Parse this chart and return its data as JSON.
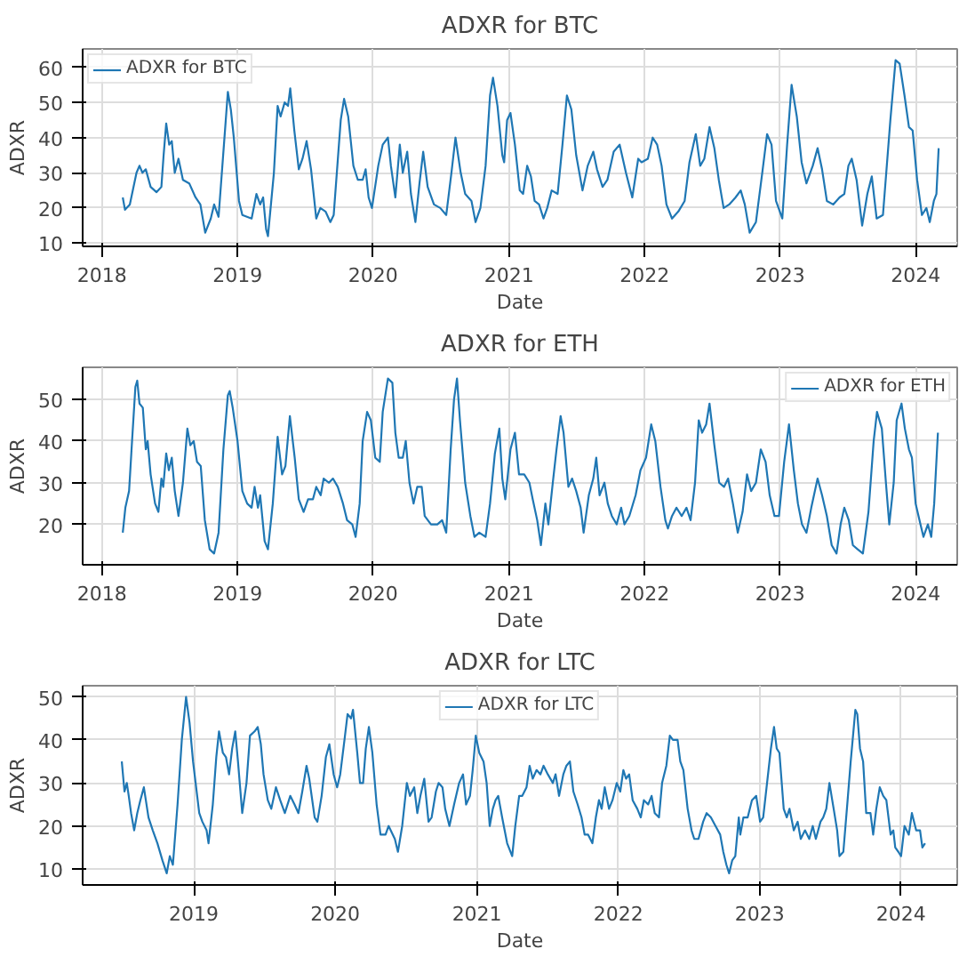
{
  "chart_data": [
    {
      "type": "line",
      "title": "ADXR for BTC",
      "xlabel": "Date",
      "ylabel": "ADXR",
      "legend": "top left",
      "grid": true,
      "xlim": [
        "2017-11-10",
        "2024-04-22"
      ],
      "xticks": [
        "2018",
        "2019",
        "2020",
        "2021",
        "2022",
        "2023",
        "2024"
      ],
      "ylim": [
        9.1,
        65.2
      ],
      "yticks": [
        10,
        20,
        30,
        40,
        50,
        60
      ],
      "x": [
        "2018-02-26",
        "2018-03-04",
        "2018-03-17",
        "2018-04-04",
        "2018-04-12",
        "2018-04-20",
        "2018-04-29",
        "2018-05-12",
        "2018-05-28",
        "2018-06-10",
        "2018-06-16",
        "2018-06-23",
        "2018-07-01",
        "2018-07-08",
        "2018-07-16",
        "2018-07-26",
        "2018-08-07",
        "2018-08-24",
        "2018-09-10",
        "2018-09-23",
        "2018-10-06",
        "2018-10-21",
        "2018-10-30",
        "2018-11-11",
        "2018-12-06",
        "2018-12-14",
        "2018-12-22",
        "2019-01-05",
        "2019-01-14",
        "2019-02-08",
        "2019-02-21",
        "2019-03-03",
        "2019-03-11",
        "2019-03-19",
        "2019-03-24",
        "2019-04-09",
        "2019-04-19",
        "2019-04-27",
        "2019-05-08",
        "2019-05-17",
        "2019-05-23",
        "2019-06-03",
        "2019-06-15",
        "2019-06-25",
        "2019-07-06",
        "2019-07-18",
        "2019-08-01",
        "2019-08-12",
        "2019-08-26",
        "2019-09-08",
        "2019-09-17",
        "2019-10-06",
        "2019-10-15",
        "2019-10-26",
        "2019-11-09",
        "2019-11-21",
        "2019-12-04",
        "2019-12-12",
        "2019-12-20",
        "2019-12-29",
        "2020-01-15",
        "2020-01-27",
        "2020-02-10",
        "2020-02-18",
        "2020-03-01",
        "2020-03-13",
        "2020-03-21",
        "2020-04-02",
        "2020-04-12",
        "2020-04-24",
        "2020-05-05",
        "2020-05-15",
        "2020-05-27",
        "2020-06-13",
        "2020-06-30",
        "2020-07-16",
        "2020-07-30",
        "2020-08-10",
        "2020-08-24",
        "2020-09-05",
        "2020-09-22",
        "2020-10-03",
        "2020-10-16",
        "2020-10-30",
        "2020-11-11",
        "2020-11-19",
        "2020-12-01",
        "2020-12-14",
        "2020-12-19",
        "2020-12-27",
        "2021-01-05",
        "2021-01-17",
        "2021-01-30",
        "2021-02-08",
        "2021-02-19",
        "2021-03-01",
        "2021-03-11",
        "2021-03-23",
        "2021-04-04",
        "2021-04-14",
        "2021-04-26",
        "2021-05-12",
        "2021-05-25",
        "2021-06-06",
        "2021-06-18",
        "2021-07-01",
        "2021-07-18",
        "2021-08-01",
        "2021-08-16",
        "2021-08-26",
        "2021-09-10",
        "2021-09-23",
        "2021-10-10",
        "2021-10-26",
        "2021-11-12",
        "2021-11-29",
        "2021-12-15",
        "2021-12-24",
        "2022-01-10",
        "2022-01-23",
        "2022-02-04",
        "2022-02-16",
        "2022-03-01",
        "2022-03-16",
        "2022-04-02",
        "2022-04-19",
        "2022-05-02",
        "2022-05-19",
        "2022-05-31",
        "2022-06-11",
        "2022-06-25",
        "2022-07-08",
        "2022-07-20",
        "2022-08-02",
        "2022-08-17",
        "2022-09-03",
        "2022-09-17",
        "2022-09-28",
        "2022-10-11",
        "2022-10-28",
        "2022-11-14",
        "2022-11-27",
        "2022-12-09",
        "2022-12-21",
        "2023-01-07",
        "2023-01-20",
        "2023-02-01",
        "2023-02-15",
        "2023-02-28",
        "2023-03-13",
        "2023-03-30",
        "2023-04-12",
        "2023-04-24",
        "2023-05-07",
        "2023-05-24",
        "2023-06-10",
        "2023-06-23",
        "2023-07-04",
        "2023-07-13",
        "2023-07-26",
        "2023-08-10",
        "2023-08-24",
        "2023-09-05",
        "2023-09-18",
        "2023-10-05",
        "2023-10-25",
        "2023-11-08",
        "2023-11-19",
        "2023-12-02",
        "2023-12-14",
        "2023-12-24",
        "2024-01-05",
        "2024-01-18",
        "2024-01-30",
        "2024-02-08",
        "2024-02-19",
        "2024-02-26",
        "2024-03-03"
      ],
      "series": [
        {
          "name": "ADXR for BTC",
          "color": "#1f77b4",
          "values": [
            23,
            19.5,
            21,
            30,
            32,
            30,
            31,
            26,
            24.5,
            26,
            35,
            44,
            38,
            39,
            30,
            34,
            28,
            27,
            23,
            21,
            13,
            17,
            21,
            17.5,
            53,
            48,
            40,
            22,
            18,
            17,
            24,
            21,
            23,
            14,
            12,
            30,
            49,
            46,
            50,
            49,
            54,
            42,
            31,
            34,
            39,
            31,
            17,
            20,
            19,
            16,
            18,
            45,
            51,
            46,
            32,
            28,
            28,
            31,
            23,
            20,
            32,
            38,
            40,
            32,
            23,
            38,
            30,
            36,
            24,
            16,
            27,
            36,
            26,
            21,
            20,
            18,
            30,
            40,
            30,
            24,
            22,
            16,
            20,
            32,
            52,
            57,
            49,
            35,
            33,
            45,
            47,
            38,
            25,
            24,
            32,
            29,
            22,
            21,
            17,
            20,
            25,
            24,
            38,
            52,
            48,
            35,
            25,
            32,
            36,
            31,
            26,
            28,
            36,
            38,
            30,
            23,
            34,
            33,
            34,
            40,
            38,
            32,
            21,
            17,
            19,
            22,
            33,
            41,
            32,
            34,
            43,
            37,
            28,
            20,
            21,
            23,
            25,
            21,
            13,
            16,
            30,
            41,
            38,
            22,
            17,
            38,
            55,
            46,
            33,
            27,
            32,
            37,
            31,
            22,
            21,
            23,
            24,
            32,
            34,
            28,
            15,
            24,
            29,
            17,
            18,
            45,
            62,
            61,
            52,
            43,
            42,
            28,
            18,
            20,
            16,
            22,
            24,
            37
          ]
        }
      ]
    },
    {
      "type": "line",
      "title": "ADXR for ETH",
      "xlabel": "Date",
      "ylabel": "ADXR",
      "legend": "top right",
      "grid": true,
      "xlim": [
        "2017-11-10",
        "2024-04-22"
      ],
      "xticks": [
        "2018",
        "2019",
        "2020",
        "2021",
        "2022",
        "2023",
        "2024"
      ],
      "ylim": [
        10.3,
        57.7
      ],
      "yticks": [
        20,
        30,
        40,
        50
      ],
      "x": [
        "2018-02-26",
        "2018-03-05",
        "2018-03-15",
        "2018-03-23",
        "2018-04-01",
        "2018-04-06",
        "2018-04-12",
        "2018-04-21",
        "2018-04-29",
        "2018-05-04",
        "2018-05-12",
        "2018-05-24",
        "2018-06-02",
        "2018-06-10",
        "2018-06-15",
        "2018-06-23",
        "2018-06-30",
        "2018-07-08",
        "2018-07-16",
        "2018-07-26",
        "2018-08-07",
        "2018-08-19",
        "2018-08-27",
        "2018-09-05",
        "2018-09-14",
        "2018-09-24",
        "2018-10-05",
        "2018-10-18",
        "2018-10-30",
        "2018-11-11",
        "2018-11-24",
        "2018-12-06",
        "2018-12-11",
        "2018-12-19",
        "2019-01-01",
        "2019-01-14",
        "2019-01-27",
        "2019-02-08",
        "2019-02-16",
        "2019-02-25",
        "2019-03-03",
        "2019-03-15",
        "2019-03-24",
        "2019-04-06",
        "2019-04-19",
        "2019-05-01",
        "2019-05-10",
        "2019-05-22",
        "2019-06-04",
        "2019-06-15",
        "2019-06-28",
        "2019-07-10",
        "2019-07-23",
        "2019-08-01",
        "2019-08-13",
        "2019-08-21",
        "2019-09-04",
        "2019-09-15",
        "2019-09-28",
        "2019-10-12",
        "2019-10-23",
        "2019-11-06",
        "2019-11-15",
        "2019-11-26",
        "2019-12-04",
        "2019-12-16",
        "2019-12-26",
        "2020-01-07",
        "2020-01-19",
        "2020-01-27",
        "2020-02-10",
        "2020-02-22",
        "2020-03-01",
        "2020-03-10",
        "2020-03-21",
        "2020-03-29",
        "2020-04-08",
        "2020-04-19",
        "2020-04-29",
        "2020-05-11",
        "2020-05-19",
        "2020-06-05",
        "2020-06-22",
        "2020-07-05",
        "2020-07-16",
        "2020-07-28",
        "2020-08-06",
        "2020-08-14",
        "2020-08-22",
        "2020-09-05",
        "2020-09-19",
        "2020-09-30",
        "2020-10-13",
        "2020-10-30",
        "2020-11-11",
        "2020-11-24",
        "2020-12-06",
        "2020-12-14",
        "2020-12-22",
        "2021-01-05",
        "2021-01-17",
        "2021-01-28",
        "2021-02-11",
        "2021-02-25",
        "2021-03-06",
        "2021-03-18",
        "2021-03-28",
        "2021-04-09",
        "2021-04-17",
        "2021-04-29",
        "2021-05-09",
        "2021-05-20",
        "2021-05-28",
        "2021-06-10",
        "2021-06-20",
        "2021-07-01",
        "2021-07-13",
        "2021-07-21",
        "2021-08-04",
        "2021-08-16",
        "2021-08-24",
        "2021-09-02",
        "2021-09-15",
        "2021-09-24",
        "2021-10-05",
        "2021-10-18",
        "2021-10-30",
        "2021-11-08",
        "2021-11-21",
        "2021-12-08",
        "2021-12-21",
        "2022-01-05",
        "2022-01-19",
        "2022-01-30",
        "2022-02-13",
        "2022-02-26",
        "2022-03-05",
        "2022-03-16",
        "2022-03-28",
        "2022-04-11",
        "2022-04-24",
        "2022-05-05",
        "2022-05-17",
        "2022-05-27",
        "2022-06-05",
        "2022-06-16",
        "2022-06-25",
        "2022-07-08",
        "2022-07-21",
        "2022-08-03",
        "2022-08-14",
        "2022-08-27",
        "2022-09-09",
        "2022-09-22",
        "2022-10-04",
        "2022-10-15",
        "2022-10-28",
        "2022-11-10",
        "2022-11-23",
        "2022-12-04",
        "2022-12-17",
        "2022-12-29",
        "2023-01-12",
        "2023-01-25",
        "2023-02-07",
        "2023-02-18",
        "2023-03-01",
        "2023-03-13",
        "2023-03-26",
        "2023-04-12",
        "2023-04-24",
        "2023-05-07",
        "2023-05-20",
        "2023-06-02",
        "2023-06-13",
        "2023-06-23",
        "2023-07-05",
        "2023-07-16",
        "2023-07-29",
        "2023-08-12",
        "2023-08-27",
        "2023-09-10",
        "2023-09-19",
        "2023-10-02",
        "2023-10-13",
        "2023-10-22",
        "2023-11-03",
        "2023-11-11",
        "2023-11-24",
        "2023-12-03",
        "2023-12-14",
        "2023-12-22",
        "2024-01-01",
        "2024-01-14",
        "2024-01-22",
        "2024-02-03",
        "2024-02-12",
        "2024-02-20",
        "2024-03-01"
      ],
      "series": [
        {
          "name": "ADXR for ETH",
          "color": "#1f77b4",
          "values": [
            18,
            24,
            28,
            40,
            53,
            54.5,
            49,
            48,
            38,
            40,
            32,
            25,
            23,
            31,
            29,
            37,
            33,
            36,
            28,
            22,
            30,
            43,
            39,
            40,
            35,
            34,
            21,
            14,
            13,
            18,
            38,
            51,
            52,
            48,
            40,
            28,
            25,
            24,
            29,
            24,
            27,
            16,
            14,
            25,
            41,
            32,
            34,
            46,
            36,
            26,
            23,
            26,
            26,
            29,
            27,
            31,
            30,
            31,
            29,
            25,
            21,
            20,
            17,
            25,
            40,
            47,
            45,
            36,
            35,
            47,
            55,
            54,
            42,
            36,
            36,
            40,
            30,
            25,
            29,
            29,
            22,
            20,
            20,
            21,
            18,
            38,
            50,
            55,
            45,
            30,
            22,
            17,
            18,
            17,
            25,
            37,
            43,
            31,
            26,
            38,
            42,
            32,
            32,
            30,
            26,
            21,
            15,
            25,
            20,
            30,
            38,
            46,
            42,
            29,
            31,
            28,
            24,
            18,
            27,
            31,
            36,
            27,
            30,
            25,
            22,
            20,
            24,
            20,
            22,
            27,
            33,
            36,
            44,
            40,
            29,
            21,
            19,
            22,
            24,
            22,
            24,
            21,
            30,
            45,
            42,
            44,
            49,
            39,
            30,
            29,
            31,
            25,
            18,
            23,
            32,
            28,
            30,
            38,
            35,
            27,
            22,
            22,
            35,
            44,
            33,
            25,
            20,
            18,
            24,
            31,
            27,
            22,
            15,
            13,
            20,
            24,
            21,
            15,
            14,
            13,
            23,
            40,
            47,
            43,
            30,
            20,
            30,
            45,
            49,
            43,
            38,
            36,
            25,
            20,
            17,
            20,
            17,
            25,
            42
          ]
        }
      ]
    },
    {
      "type": "line",
      "title": "ADXR for LTC",
      "xlabel": "Date",
      "ylabel": "ADXR",
      "legend": "top",
      "grid": true,
      "xlim": [
        "2018-03-20",
        "2024-05-25"
      ],
      "xticks": [
        "2019",
        "2020",
        "2021",
        "2022",
        "2023",
        "2024"
      ],
      "ylim": [
        6.3,
        52.6
      ],
      "yticks": [
        10,
        20,
        30,
        40,
        50
      ],
      "x": [
        "2018-06-29",
        "2018-07-06",
        "2018-07-12",
        "2018-07-17",
        "2018-07-23",
        "2018-07-31",
        "2018-08-08",
        "2018-08-16",
        "2018-08-25",
        "2018-09-06",
        "2018-09-17",
        "2018-09-29",
        "2018-10-12",
        "2018-10-23",
        "2018-10-31",
        "2018-11-08",
        "2018-11-20",
        "2018-12-01",
        "2018-12-12",
        "2018-12-21",
        "2018-12-30",
        "2019-01-07",
        "2019-01-15",
        "2019-01-23",
        "2019-02-03",
        "2019-02-08",
        "2019-02-19",
        "2019-02-28",
        "2019-03-07",
        "2019-03-17",
        "2019-03-25",
        "2019-04-02",
        "2019-04-10",
        "2019-04-18",
        "2019-04-25",
        "2019-05-06",
        "2019-05-17",
        "2019-05-26",
        "2019-06-07",
        "2019-06-15",
        "2019-06-23",
        "2019-06-30",
        "2019-07-11",
        "2019-07-20",
        "2019-08-01",
        "2019-08-12",
        "2019-08-24",
        "2019-09-07",
        "2019-09-18",
        "2019-09-28",
        "2019-10-08",
        "2019-10-19",
        "2019-10-26",
        "2019-11-09",
        "2019-11-16",
        "2019-11-27",
        "2019-12-08",
        "2019-12-17",
        "2019-12-28",
        "2020-01-06",
        "2020-01-14",
        "2020-01-25",
        "2020-02-02",
        "2020-02-11",
        "2020-02-16",
        "2020-02-27",
        "2020-03-05",
        "2020-03-13",
        "2020-03-20",
        "2020-03-28",
        "2020-04-06",
        "2020-04-17",
        "2020-04-27",
        "2020-05-10",
        "2020-05-18",
        "2020-06-03",
        "2020-06-11",
        "2020-06-22",
        "2020-07-04",
        "2020-07-12",
        "2020-07-23",
        "2020-07-31",
        "2020-08-08",
        "2020-08-18",
        "2020-08-29",
        "2020-09-06",
        "2020-09-17",
        "2020-09-24",
        "2020-10-04",
        "2020-10-11",
        "2020-10-22",
        "2020-11-03",
        "2020-11-16",
        "2020-11-26",
        "2020-12-04",
        "2020-12-14",
        "2020-12-21",
        "2020-12-29",
        "2021-01-07",
        "2021-01-18",
        "2021-01-26",
        "2021-02-03",
        "2021-02-11",
        "2021-02-18",
        "2021-02-25",
        "2021-03-07",
        "2021-03-20",
        "2021-04-02",
        "2021-04-10",
        "2021-04-20",
        "2021-04-28",
        "2021-05-09",
        "2021-05-17",
        "2021-05-25",
        "2021-06-04",
        "2021-06-14",
        "2021-06-22",
        "2021-07-03",
        "2021-07-16",
        "2021-07-23",
        "2021-08-01",
        "2021-08-12",
        "2021-08-20",
        "2021-08-29",
        "2021-09-07",
        "2021-09-18",
        "2021-09-28",
        "2021-10-06",
        "2021-10-15",
        "2021-10-26",
        "2021-11-04",
        "2021-11-12",
        "2021-11-19",
        "2021-11-27",
        "2021-12-08",
        "2021-12-17",
        "2021-12-28",
        "2022-01-06",
        "2022-01-14",
        "2022-01-21",
        "2022-01-29",
        "2022-02-07",
        "2022-02-19",
        "2022-02-28",
        "2022-03-08",
        "2022-03-19",
        "2022-03-28",
        "2022-04-05",
        "2022-04-16",
        "2022-04-24",
        "2022-05-05",
        "2022-05-14",
        "2022-05-22",
        "2022-06-03",
        "2022-06-10",
        "2022-06-18",
        "2022-06-29",
        "2022-07-09",
        "2022-07-16",
        "2022-07-27",
        "2022-08-08",
        "2022-08-17",
        "2022-08-28",
        "2022-09-09",
        "2022-09-21",
        "2022-09-29",
        "2022-10-07",
        "2022-10-14",
        "2022-10-22",
        "2022-10-30",
        "2022-11-08",
        "2022-11-12",
        "2022-11-20",
        "2022-12-01",
        "2022-12-12",
        "2022-12-23",
        "2023-01-02",
        "2023-01-10",
        "2023-01-20",
        "2023-01-30",
        "2023-02-07",
        "2023-02-14",
        "2023-02-21",
        "2023-03-04",
        "2023-03-12",
        "2023-03-19",
        "2023-03-30",
        "2023-04-09",
        "2023-04-17",
        "2023-04-28",
        "2023-05-09",
        "2023-05-18",
        "2023-05-26",
        "2023-06-07",
        "2023-06-14",
        "2023-06-22",
        "2023-06-30",
        "2023-07-11",
        "2023-07-20",
        "2023-07-26",
        "2023-08-05",
        "2023-08-16",
        "2023-08-24",
        "2023-09-05",
        "2023-09-10",
        "2023-09-17",
        "2023-09-25",
        "2023-10-03",
        "2023-10-14",
        "2023-10-21",
        "2023-10-29",
        "2023-11-07",
        "2023-11-16",
        "2023-11-24",
        "2023-12-05",
        "2023-12-12",
        "2023-12-17",
        "2023-12-25",
        "2024-01-01",
        "2024-01-10",
        "2024-01-21",
        "2024-01-29",
        "2024-02-09",
        "2024-02-19",
        "2024-02-25",
        "2024-03-03"
      ],
      "series": [
        {
          "name": "ADXR for LTC",
          "color": "#1f77b4",
          "values": [
            35,
            28,
            30,
            27,
            23,
            19,
            23,
            26,
            29,
            22,
            19,
            16,
            12,
            9,
            13,
            11,
            25,
            40,
            50,
            44,
            35,
            29,
            23,
            21,
            19,
            16,
            25,
            36,
            42,
            37,
            36,
            32,
            38,
            42,
            35,
            23,
            30,
            41,
            42,
            43,
            39,
            32,
            26,
            24,
            29,
            26,
            23,
            27,
            25,
            23,
            28,
            34,
            31,
            22,
            21,
            27,
            36,
            39,
            32,
            29,
            32,
            40,
            46,
            45,
            47,
            37,
            30,
            30,
            38,
            43,
            37,
            25,
            18,
            18,
            20,
            17,
            14,
            20,
            30,
            27,
            29,
            23,
            27,
            31,
            21,
            22,
            28,
            30,
            29,
            24,
            20,
            25,
            30,
            32,
            25,
            27,
            33,
            41,
            37,
            35,
            30,
            20,
            24,
            26,
            27,
            22,
            16,
            13,
            20,
            27,
            27,
            29,
            34,
            31,
            33,
            32,
            34,
            32,
            30,
            32,
            27,
            32,
            34,
            35,
            28,
            25,
            22,
            18,
            18,
            16,
            22,
            26,
            24,
            29,
            24,
            26,
            30,
            28,
            33,
            31,
            32,
            26,
            24,
            22,
            26,
            25,
            27,
            23,
            22,
            30,
            34,
            41,
            40,
            40,
            35,
            33,
            24,
            19,
            17,
            17,
            21,
            23,
            22,
            20,
            18,
            14,
            11,
            9,
            12,
            13,
            22,
            18,
            22,
            22,
            26,
            27,
            21,
            22,
            30,
            38,
            43,
            38,
            37,
            24,
            22,
            24,
            19,
            21,
            17,
            19,
            17,
            20,
            17,
            21,
            22,
            24,
            30,
            24,
            19,
            13,
            14,
            26,
            35,
            47,
            46,
            38,
            35,
            23,
            23,
            18,
            24,
            29,
            27,
            26,
            18,
            19,
            15,
            14,
            13,
            20,
            18,
            23,
            19,
            19,
            15,
            16
          ]
        }
      ]
    }
  ]
}
